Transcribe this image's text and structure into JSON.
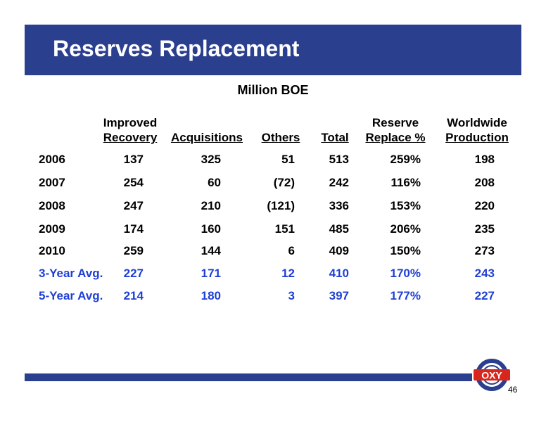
{
  "title": "Reserves Replacement",
  "subtitle": "Million BOE",
  "headers": [
    {
      "line1": "Improved",
      "line2": "Recovery"
    },
    {
      "line1": "",
      "line2": "Acquisitions"
    },
    {
      "line1": "",
      "line2": "Others"
    },
    {
      "line1": "",
      "line2": "Total"
    },
    {
      "line1": "Reserve",
      "line2": "Replace %"
    },
    {
      "line1": "Worldwide",
      "line2": "Production"
    }
  ],
  "rows": [
    {
      "label": "2006",
      "cells": [
        "137",
        "325",
        "51",
        "513",
        "259%",
        "198"
      ],
      "highlight": false
    },
    {
      "label": "2007",
      "cells": [
        "254",
        "60",
        "(72)",
        "242",
        "116%",
        "208"
      ],
      "highlight": false
    },
    {
      "label": "2008",
      "cells": [
        "247",
        "210",
        "(121)",
        "336",
        "153%",
        "220"
      ],
      "highlight": false
    },
    {
      "label": "2009",
      "cells": [
        "174",
        "160",
        "151",
        "485",
        "206%",
        "235"
      ],
      "highlight": false
    },
    {
      "label": "2010",
      "cells": [
        "259",
        "144",
        "6",
        "409",
        "150%",
        "273"
      ],
      "highlight": false
    },
    {
      "label": "3-Year Avg.",
      "cells": [
        "227",
        "171",
        "12",
        "410",
        "170%",
        "243"
      ],
      "highlight": true
    },
    {
      "label": "5-Year Avg.",
      "cells": [
        "214",
        "180",
        "3",
        "397",
        "177%",
        "227"
      ],
      "highlight": true
    }
  ],
  "logo_text": "OXY",
  "page_number": "46",
  "colors": {
    "brand_blue": "#2b3f8f",
    "highlight_blue": "#1f3fd4",
    "logo_red": "#d9261c"
  }
}
